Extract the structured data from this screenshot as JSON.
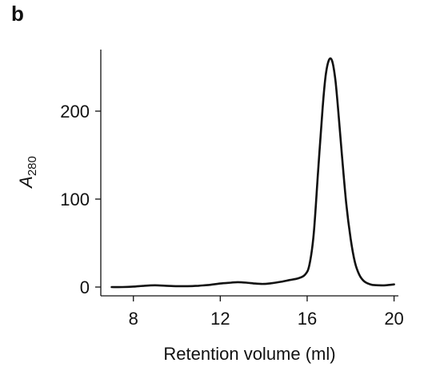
{
  "panel_label": "b",
  "chart_data": {
    "type": "line",
    "xlabel": "Retention volume (ml)",
    "ylabel": {
      "main": "A",
      "subscript": "280"
    },
    "xlim": [
      6.5,
      20.2
    ],
    "ylim": [
      -10,
      270
    ],
    "xticks": [
      8,
      12,
      16,
      20
    ],
    "yticks": [
      0,
      100,
      200
    ],
    "grid": false,
    "legend": "none",
    "series": [
      {
        "x": [
          7.0,
          7.5,
          8.0,
          8.5,
          9.0,
          9.5,
          10.0,
          10.5,
          11.0,
          11.5,
          12.0,
          12.5,
          12.8,
          13.2,
          13.6,
          14.0,
          14.4,
          14.8,
          15.2,
          15.6,
          15.9,
          16.1,
          16.3,
          16.5,
          16.7,
          16.85,
          17.0,
          17.15,
          17.3,
          17.45,
          17.6,
          17.8,
          18.0,
          18.2,
          18.4,
          18.6,
          18.8,
          19.0,
          19.3,
          19.6,
          20.0
        ],
        "y": [
          0,
          0,
          0.5,
          1.5,
          2,
          1.5,
          1,
          1,
          1.5,
          2.5,
          4,
          5,
          5.5,
          5,
          4,
          3.5,
          4.5,
          6,
          8,
          10,
          14,
          25,
          60,
          130,
          200,
          240,
          258,
          257,
          235,
          195,
          150,
          95,
          55,
          28,
          14,
          7,
          4,
          2.5,
          2,
          2,
          3
        ]
      }
    ]
  }
}
